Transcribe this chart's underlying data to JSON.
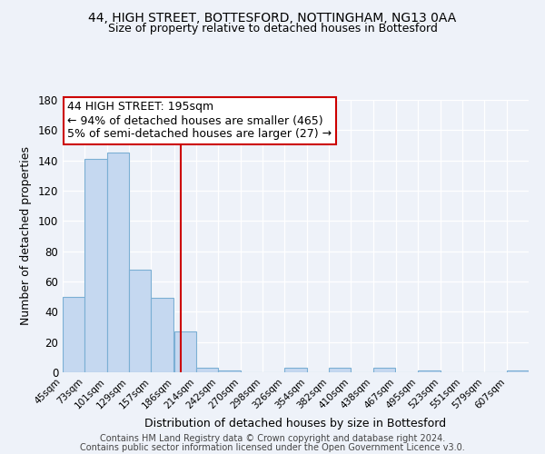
{
  "title1": "44, HIGH STREET, BOTTESFORD, NOTTINGHAM, NG13 0AA",
  "title2": "Size of property relative to detached houses in Bottesford",
  "xlabel": "Distribution of detached houses by size in Bottesford",
  "ylabel": "Number of detached properties",
  "bin_labels": [
    "45sqm",
    "73sqm",
    "101sqm",
    "129sqm",
    "157sqm",
    "186sqm",
    "214sqm",
    "242sqm",
    "270sqm",
    "298sqm",
    "326sqm",
    "354sqm",
    "382sqm",
    "410sqm",
    "438sqm",
    "467sqm",
    "495sqm",
    "523sqm",
    "551sqm",
    "579sqm",
    "607sqm"
  ],
  "bin_edges": [
    45,
    73,
    101,
    129,
    157,
    186,
    214,
    242,
    270,
    298,
    326,
    354,
    382,
    410,
    438,
    467,
    495,
    523,
    551,
    579,
    607
  ],
  "bar_heights": [
    50,
    141,
    145,
    68,
    49,
    27,
    3,
    1,
    0,
    0,
    3,
    0,
    3,
    0,
    3,
    0,
    1,
    0,
    0,
    0,
    1
  ],
  "bar_color": "#c5d8f0",
  "bar_edge_color": "#7bafd4",
  "property_size": 195,
  "vline_color": "#cc0000",
  "annotation_line1": "44 HIGH STREET: 195sqm",
  "annotation_line2": "← 94% of detached houses are smaller (465)",
  "annotation_line3": "5% of semi-detached houses are larger (27) →",
  "annotation_box_edge": "#cc0000",
  "annotation_fontsize": 9,
  "ylim": [
    0,
    180
  ],
  "yticks": [
    0,
    20,
    40,
    60,
    80,
    100,
    120,
    140,
    160,
    180
  ],
  "footer1": "Contains HM Land Registry data © Crown copyright and database right 2024.",
  "footer2": "Contains public sector information licensed under the Open Government Licence v3.0.",
  "background_color": "#eef2f9",
  "plot_background": "#eef2f9"
}
